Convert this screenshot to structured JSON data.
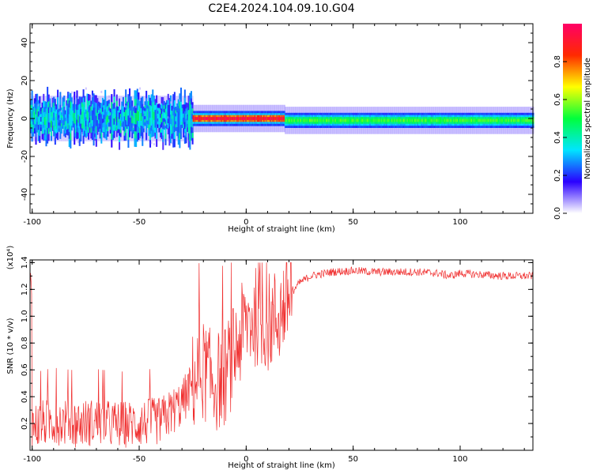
{
  "title": "C2E4.2024.104.09.10.G04",
  "chart_data": [
    {
      "type": "heatmap",
      "xlabel": "Height of straight line (km)",
      "ylabel": "Frequency (Hz)",
      "xlim": [
        -101,
        134
      ],
      "ylim": [
        -50,
        50
      ],
      "xticks": [
        -100,
        -50,
        0,
        50,
        100
      ],
      "yticks": [
        -40,
        -20,
        0,
        20,
        40
      ],
      "colorbar": {
        "label": "Normalized spectral amplitude",
        "range": [
          0.0,
          1.0
        ],
        "ticks": [
          0.0,
          0.2,
          0.4,
          0.6,
          0.8
        ],
        "colors": [
          "#ffffff",
          "#2a00ff",
          "#00e5ff",
          "#00ff3c",
          "#ffff00",
          "#ff2a00",
          "#ff0066"
        ]
      },
      "bands": [
        {
          "x_range": [
            -101,
            -25
          ],
          "center_freq": 0,
          "spread_hz": 10,
          "amplitude": 0.35,
          "note": "noisy broadband"
        },
        {
          "x_range": [
            -25,
            18
          ],
          "center_freq": 0,
          "spread_hz": 4,
          "amplitude": 0.95
        },
        {
          "x_range": [
            18,
            134
          ],
          "center_freq": -1,
          "spread_hz": 4,
          "amplitude": 0.55
        }
      ]
    },
    {
      "type": "line",
      "xlabel": "Height of straight line (km)",
      "ylabel": "SNR (10 * v/v)",
      "y_scale_label": "(x10⁴)",
      "xlim": [
        -101,
        134
      ],
      "ylim": [
        0,
        1.42
      ],
      "xticks": [
        -100,
        -50,
        0,
        50,
        100
      ],
      "yticks": [
        0.2,
        0.4,
        0.6,
        0.8,
        1.0,
        1.2,
        1.4
      ],
      "color": "#f03030",
      "series": [
        {
          "x": [
            -100,
            -90,
            -80,
            -70,
            -60,
            -50,
            -40,
            -30,
            -25,
            -20,
            -15,
            -10,
            -5,
            0,
            5,
            10,
            15,
            20,
            25,
            30,
            40,
            50,
            60,
            70,
            80,
            90,
            95,
            100,
            110,
            120,
            134
          ],
          "values": [
            0.18,
            0.22,
            0.2,
            0.21,
            0.19,
            0.2,
            0.22,
            0.35,
            0.5,
            0.6,
            0.5,
            0.55,
            0.75,
            0.95,
            1.0,
            0.95,
            1.0,
            1.15,
            1.25,
            1.3,
            1.33,
            1.34,
            1.33,
            1.33,
            1.33,
            1.32,
            1.3,
            1.32,
            1.31,
            1.3,
            1.3
          ]
        }
      ]
    }
  ]
}
